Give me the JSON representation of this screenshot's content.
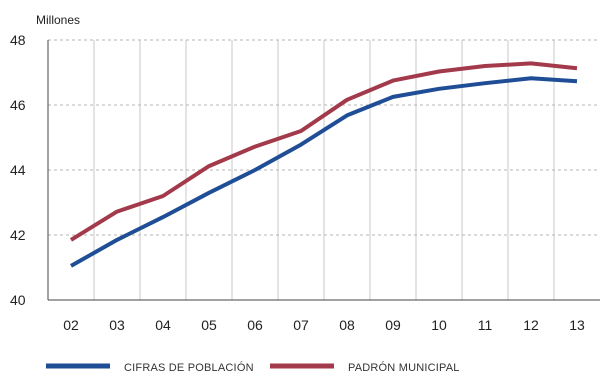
{
  "chart_data": {
    "type": "line",
    "title": "",
    "unit_label": "Millones",
    "xlabel": "",
    "ylabel": "",
    "categories": [
      "02",
      "03",
      "04",
      "05",
      "06",
      "07",
      "08",
      "09",
      "10",
      "11",
      "12",
      "13"
    ],
    "ylim": [
      40,
      48
    ],
    "yticks": [
      "40",
      "42",
      "44",
      "46",
      "48"
    ],
    "grid": true,
    "legend_position": "bottom",
    "series": [
      {
        "name": "CIFRAS DE POBLACIÓN",
        "color": "#1f4e96",
        "values": [
          41.05,
          41.85,
          42.55,
          43.3,
          44.0,
          44.78,
          45.68,
          46.25,
          46.5,
          46.67,
          46.82,
          46.73
        ]
      },
      {
        "name": "PADRÓN MUNICIPAL",
        "color": "#a33a4b",
        "values": [
          41.85,
          42.72,
          43.2,
          44.12,
          44.72,
          45.2,
          46.16,
          46.75,
          47.03,
          47.2,
          47.28,
          47.13
        ]
      }
    ]
  }
}
